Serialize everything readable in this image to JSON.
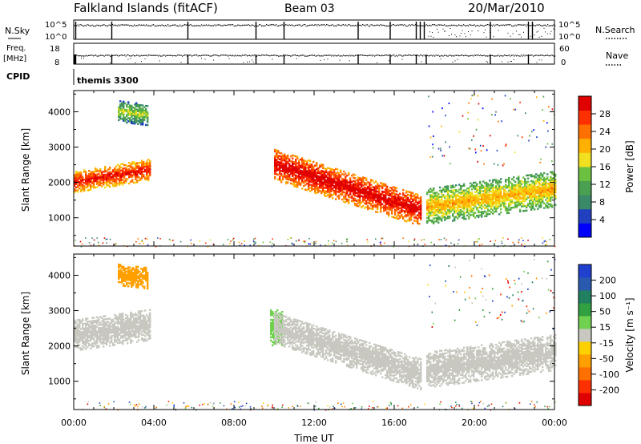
{
  "header": {
    "station": "Falkland Islands (fitACF)",
    "beam": "Beam 03",
    "date": "20/Mar/2010"
  },
  "strip_nsky": {
    "label": "N.Sky",
    "left_ticks": [
      "10^5",
      "10^0"
    ],
    "right_ticks": [
      "10^5",
      "10^0"
    ],
    "right_label": "N.Search"
  },
  "strip_freq": {
    "label_line1": "Freq.",
    "label_line2": "[MHz]",
    "left_ticks": [
      "18",
      "8"
    ],
    "right_ticks": [
      "60",
      "0"
    ],
    "right_label": "Nave"
  },
  "cpid": {
    "label": "CPID",
    "program": "themis 3300"
  },
  "power_panel": {
    "ylabel": "Slant Range [km]",
    "colorbar_label": "Power [dB]",
    "colorbar_ticks": [
      "28",
      "24",
      "20",
      "16",
      "12",
      "8",
      "4"
    ],
    "colorbar_colors": [
      "#0000ff",
      "#2040c0",
      "#3a8a6a",
      "#4aa050",
      "#6cc040",
      "#f0e020",
      "#ffb000",
      "#ff7000",
      "#ff3000",
      "#e00000"
    ]
  },
  "velocity_panel": {
    "ylabel": "Slant Range [km]",
    "colorbar_label": "Velocity [m s⁻¹]",
    "colorbar_ticks": [
      "200",
      "100",
      "50",
      "15",
      "-15",
      "-50",
      "-100",
      "-200"
    ],
    "colorbar_colors": [
      "#2040d0",
      "#2a5ab0",
      "#208060",
      "#30a040",
      "#70d050",
      "#c8c8c0",
      "#ffd000",
      "#ffa000",
      "#ff7000",
      "#ff3000",
      "#e00000"
    ]
  },
  "x_axis": {
    "label": "Time UT",
    "ticks": [
      "00:00",
      "04:00",
      "08:00",
      "12:00",
      "16:00",
      "20:00",
      "00:00"
    ]
  },
  "chart_data": [
    {
      "type": "heatmap",
      "name": "Power",
      "xlabel": "Time UT",
      "ylabel": "Slant Range [km]",
      "xlim_hours": [
        0,
        24
      ],
      "ylim": [
        200,
        4600
      ],
      "yticks": [
        1000,
        2000,
        3000,
        4000
      ],
      "clim": [
        0,
        30
      ],
      "regions": [
        {
          "t_start": 0.0,
          "t_end": 3.8,
          "range_center": [
            2000,
            2350
          ],
          "range_halfwidth": 300,
          "value": 22
        },
        {
          "t_start": 2.2,
          "t_end": 3.7,
          "range_center": [
            4000,
            3900
          ],
          "range_halfwidth": 300,
          "value": 10
        },
        {
          "t_start": 10.0,
          "t_end": 17.3,
          "range_center": [
            2500,
            1200
          ],
          "range_halfwidth": 450,
          "value": 24
        },
        {
          "t_start": 17.6,
          "t_end": 24.0,
          "range_center": [
            1300,
            1800
          ],
          "range_halfwidth": 500,
          "value": 14
        }
      ]
    },
    {
      "type": "heatmap",
      "name": "Velocity",
      "xlabel": "Time UT",
      "ylabel": "Slant Range [km]",
      "xlim_hours": [
        0,
        24
      ],
      "ylim": [
        200,
        4600
      ],
      "yticks": [
        1000,
        2000,
        3000,
        4000
      ],
      "clim": [
        -250,
        250
      ],
      "regions": [
        {
          "t_start": 0.0,
          "t_end": 3.8,
          "range_center": [
            2300,
            2600
          ],
          "range_halfwidth": 450,
          "value": 0
        },
        {
          "t_start": 2.2,
          "t_end": 3.7,
          "range_center": [
            4000,
            3900
          ],
          "range_halfwidth": 300,
          "value": -80
        },
        {
          "t_start": 9.8,
          "t_end": 10.4,
          "range_center": [
            2500,
            2500
          ],
          "range_halfwidth": 500,
          "value": 35
        },
        {
          "t_start": 10.0,
          "t_end": 17.3,
          "range_center": [
            2500,
            1200
          ],
          "range_halfwidth": 450,
          "value": 0
        },
        {
          "t_start": 17.6,
          "t_end": 24.0,
          "range_center": [
            1300,
            1800
          ],
          "range_halfwidth": 500,
          "value": 0
        }
      ]
    }
  ]
}
